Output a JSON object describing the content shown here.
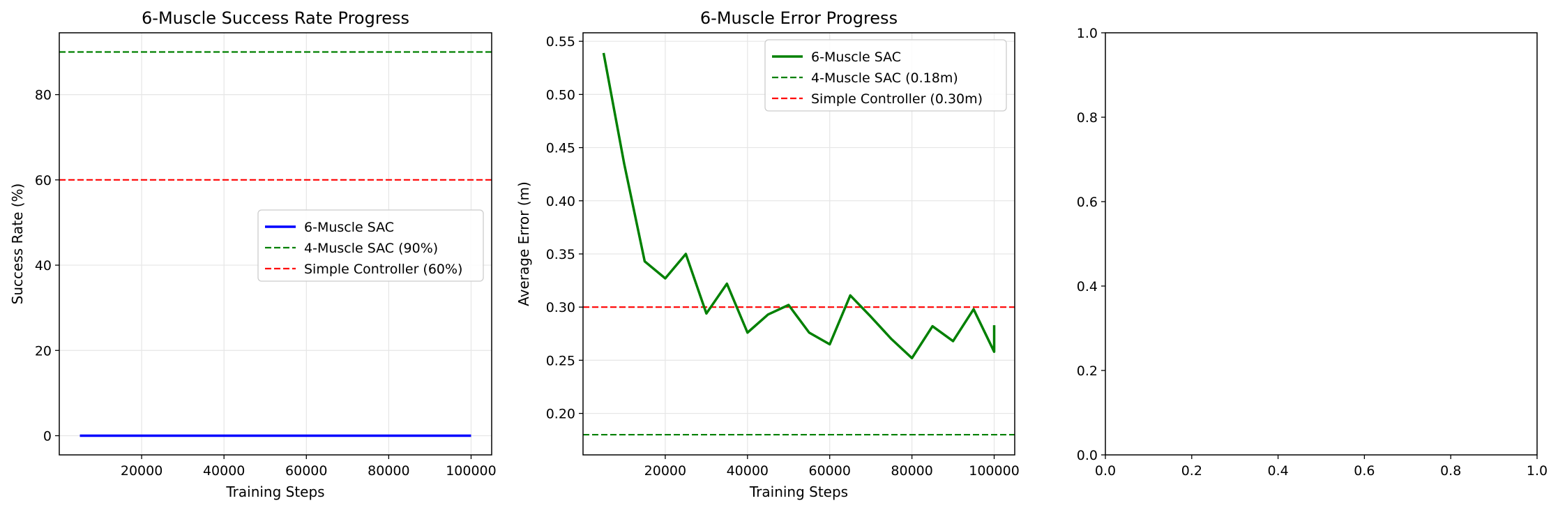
{
  "chart_data": [
    {
      "type": "line",
      "title": "6-Muscle Success Rate Progress",
      "xlabel": "Training Steps",
      "ylabel": "Success Rate (%)",
      "xlim": [
        0,
        105000
      ],
      "ylim": [
        -4.5,
        94.5
      ],
      "xticks": [
        20000,
        40000,
        60000,
        80000,
        100000
      ],
      "yticks": [
        0,
        20,
        40,
        60,
        80
      ],
      "grid": true,
      "legend": "center-right",
      "series": [
        {
          "name": "6-Muscle SAC",
          "style": "solid",
          "color": "#0000ff",
          "x": [
            5000,
            10000,
            15000,
            20000,
            25000,
            30000,
            35000,
            40000,
            45000,
            50000,
            55000,
            60000,
            65000,
            70000,
            75000,
            80000,
            85000,
            90000,
            95000,
            100000
          ],
          "y": [
            0,
            0,
            0,
            0,
            0,
            0,
            0,
            0,
            0,
            0,
            0,
            0,
            0,
            0,
            0,
            0,
            0,
            0,
            0,
            0
          ]
        }
      ],
      "hlines": [
        {
          "name": "4-Muscle SAC (90%)",
          "y": 90,
          "style": "dashed",
          "color": "#008000"
        },
        {
          "name": "Simple Controller (60%)",
          "y": 60,
          "style": "dashed",
          "color": "#ff0000"
        }
      ]
    },
    {
      "type": "line",
      "title": "6-Muscle Error Progress",
      "xlabel": "Training Steps",
      "ylabel": "Average Error (m)",
      "xlim": [
        0,
        105000
      ],
      "ylim": [
        0.161,
        0.558
      ],
      "xticks": [
        20000,
        40000,
        60000,
        80000,
        100000
      ],
      "yticks": [
        0.2,
        0.25,
        0.3,
        0.35,
        0.4,
        0.45,
        0.5,
        0.55
      ],
      "grid": true,
      "legend": "upper-right",
      "series": [
        {
          "name": "6-Muscle SAC",
          "style": "solid",
          "color": "#008000",
          "x": [
            5000,
            10000,
            15000,
            20000,
            25000,
            30000,
            35000,
            40000,
            45000,
            50000,
            55000,
            60000,
            65000,
            70000,
            75000,
            80000,
            85000,
            90000,
            95000,
            100000,
            100000
          ],
          "y": [
            0.539,
            0.435,
            0.343,
            0.327,
            0.35,
            0.294,
            0.322,
            0.276,
            0.293,
            0.302,
            0.276,
            0.265,
            0.311,
            0.291,
            0.27,
            0.252,
            0.282,
            0.268,
            0.298,
            0.258,
            0.283
          ]
        }
      ],
      "hlines": [
        {
          "name": "4-Muscle SAC (0.18m)",
          "y": 0.18,
          "style": "dashed",
          "color": "#008000"
        },
        {
          "name": "Simple Controller (0.30m)",
          "y": 0.3,
          "style": "dashed",
          "color": "#ff0000"
        }
      ]
    },
    {
      "type": "line",
      "title": "",
      "xlabel": "",
      "ylabel": "",
      "xlim": [
        0,
        1
      ],
      "ylim": [
        0,
        1
      ],
      "xticks": [
        0.0,
        0.2,
        0.4,
        0.6,
        0.8,
        1.0
      ],
      "yticks": [
        0.0,
        0.2,
        0.4,
        0.6,
        0.8,
        1.0
      ],
      "grid": false,
      "series": [],
      "hlines": []
    }
  ]
}
